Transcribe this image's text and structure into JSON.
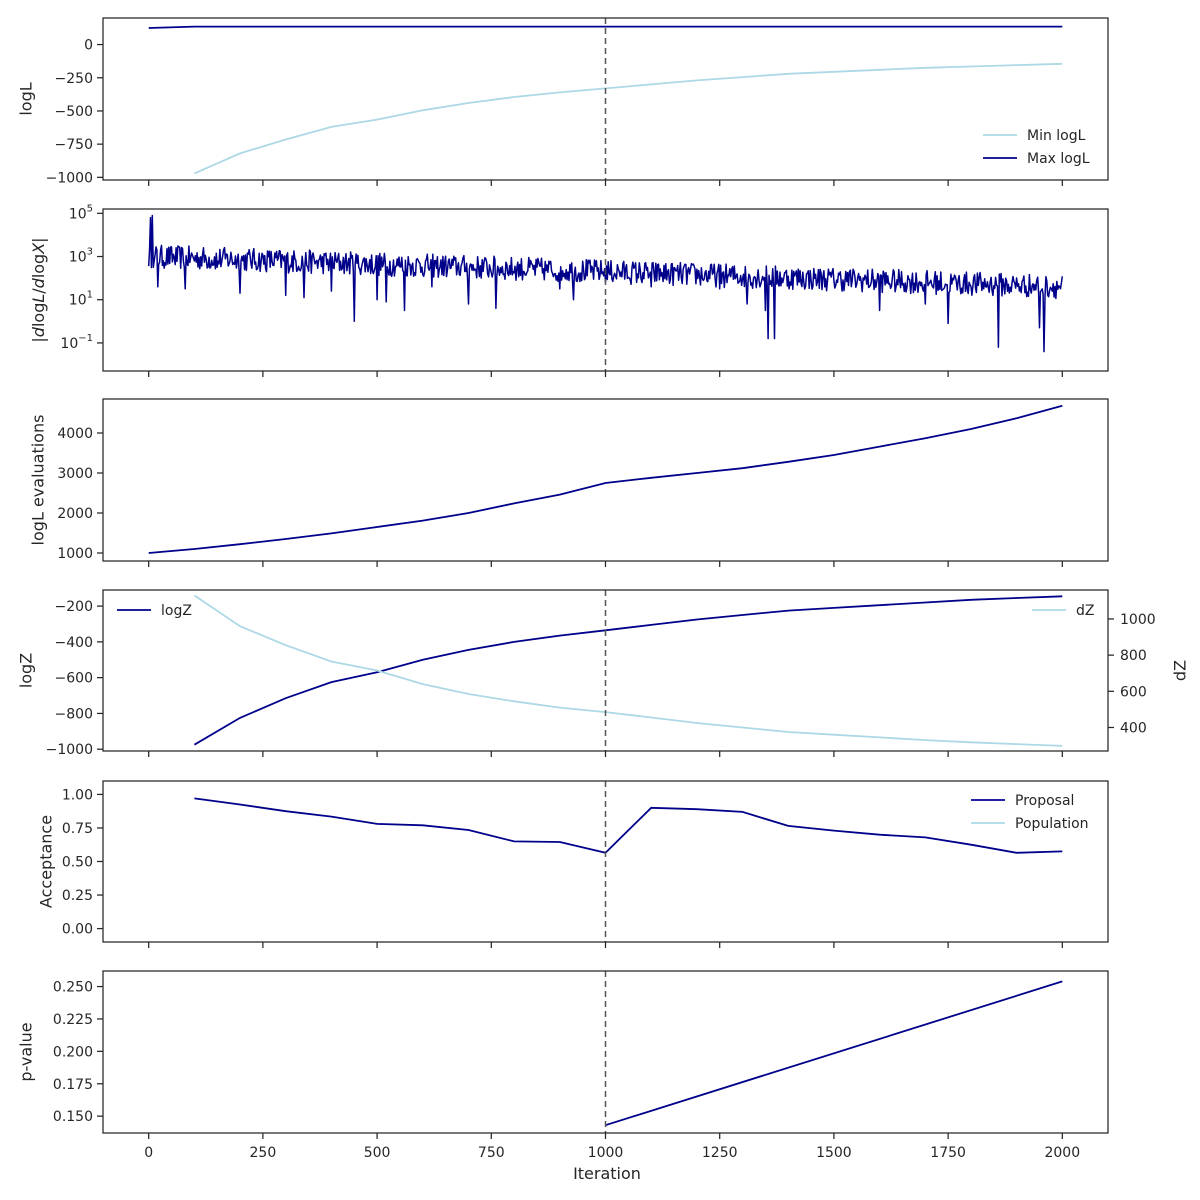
{
  "colors": {
    "dark": "#00008b",
    "light": "#add8e6",
    "vline": "#555555",
    "axis": "#262626"
  },
  "x_axis": {
    "label": "Iteration",
    "range": [
      -100,
      2100
    ],
    "ticks": [
      0,
      250,
      500,
      750,
      1000,
      1250,
      1500,
      1750,
      2000
    ],
    "tick_labels": [
      "0",
      "250",
      "500",
      "750",
      "1000",
      "1250",
      "1500",
      "1750",
      "2000"
    ]
  },
  "vline_x": 1000,
  "chart_data": [
    {
      "type": "line",
      "ylabel": "logL",
      "ylim": [
        -1020,
        200
      ],
      "yticks": [
        0,
        -250,
        -500,
        -750,
        -1000
      ],
      "ytick_labels": [
        "0",
        "−250",
        "−500",
        "−750",
        "−1000"
      ],
      "legend": {
        "placement": "lower-right",
        "entries": [
          "Min logL",
          "Max logL"
        ]
      },
      "series": [
        {
          "name": "Min logL",
          "color": "light",
          "x": [
            100,
            200,
            300,
            400,
            500,
            600,
            700,
            800,
            900,
            1000,
            1100,
            1200,
            1300,
            1400,
            1500,
            1600,
            1700,
            1800,
            1900,
            2000
          ],
          "y": [
            -970,
            -820,
            -715,
            -620,
            -565,
            -495,
            -440,
            -395,
            -360,
            -330,
            -300,
            -270,
            -245,
            -220,
            -205,
            -190,
            -175,
            -165,
            -155,
            -145
          ]
        },
        {
          "name": "Max logL",
          "color": "dark",
          "x": [
            0,
            100,
            2000
          ],
          "y": [
            125,
            135,
            135
          ]
        }
      ]
    },
    {
      "type": "line",
      "ylabel": "|dlogL/dlogX|",
      "yscale": "log",
      "ylim_log10": [
        -2.3,
        5.2
      ],
      "yticks_log10": [
        5,
        3,
        1,
        -1
      ],
      "ytick_labels": [
        "10^5",
        "10^3",
        "10^1",
        "10^-1"
      ],
      "series": [
        {
          "name": "",
          "color": "dark",
          "noise": {
            "start": 0,
            "end": 2000,
            "step": 2,
            "log10_start": 3.0,
            "log10_end": 1.6,
            "jitter": 0.55
          },
          "dips": [
            [
              4,
              4.8
            ],
            [
              8,
              4.9
            ],
            [
              12,
              2.8
            ],
            [
              20,
              1.6
            ],
            [
              80,
              1.5
            ],
            [
              150,
              2.5
            ],
            [
              200,
              1.3
            ],
            [
              300,
              1.2
            ],
            [
              340,
              1.1
            ],
            [
              400,
              1.4
            ],
            [
              450,
              0.0
            ],
            [
              500,
              1.0
            ],
            [
              520,
              0.9
            ],
            [
              560,
              0.5
            ],
            [
              620,
              1.6
            ],
            [
              700,
              0.8
            ],
            [
              760,
              0.6
            ],
            [
              900,
              1.5
            ],
            [
              930,
              1.0
            ],
            [
              1100,
              1.6
            ],
            [
              1250,
              1.5
            ],
            [
              1310,
              0.8
            ],
            [
              1350,
              0.5
            ],
            [
              1355,
              -0.8
            ],
            [
              1370,
              -0.8
            ],
            [
              1600,
              0.5
            ],
            [
              1700,
              0.8
            ],
            [
              1750,
              -0.1
            ],
            [
              1860,
              -1.2
            ],
            [
              1950,
              -0.3
            ],
            [
              1960,
              -1.4
            ]
          ]
        }
      ]
    },
    {
      "type": "line",
      "ylabel": "logL evaluations",
      "ylim": [
        800,
        4850
      ],
      "yticks": [
        1000,
        2000,
        3000,
        4000
      ],
      "ytick_labels": [
        "1000",
        "2000",
        "3000",
        "4000"
      ],
      "series": [
        {
          "name": "",
          "color": "dark",
          "x": [
            0,
            100,
            200,
            300,
            400,
            500,
            600,
            700,
            800,
            900,
            1000,
            1100,
            1200,
            1300,
            1400,
            1500,
            1600,
            1700,
            1800,
            1900,
            2000
          ],
          "y": [
            1000,
            1100,
            1220,
            1350,
            1490,
            1650,
            1810,
            2000,
            2240,
            2460,
            2750,
            2880,
            3000,
            3120,
            3280,
            3450,
            3660,
            3870,
            4100,
            4370,
            4680
          ]
        }
      ]
    },
    {
      "type": "line",
      "ylabel": "logZ",
      "ylim": [
        -1010,
        -110
      ],
      "yticks": [
        -200,
        -400,
        -600,
        -800,
        -1000
      ],
      "ytick_labels": [
        "−200",
        "−400",
        "−600",
        "−800",
        "−1000"
      ],
      "legend": {
        "placement": "upper-left",
        "entries": [
          "logZ"
        ]
      },
      "series": [
        {
          "name": "logZ",
          "color": "dark",
          "x": [
            100,
            200,
            300,
            400,
            500,
            600,
            700,
            800,
            900,
            1000,
            1100,
            1200,
            1300,
            1400,
            1500,
            1600,
            1700,
            1800,
            1900,
            2000
          ],
          "y": [
            -975,
            -825,
            -715,
            -625,
            -570,
            -500,
            -445,
            -400,
            -365,
            -335,
            -305,
            -275,
            -250,
            -225,
            -210,
            -195,
            -180,
            -165,
            -155,
            -145
          ]
        }
      ],
      "secondary_axis": {
        "ylabel": "dZ",
        "ylim": [
          270,
          1160
        ],
        "yticks": [
          400,
          600,
          800,
          1000
        ],
        "ytick_labels": [
          "400",
          "600",
          "800",
          "1000"
        ],
        "legend": {
          "placement": "upper-right",
          "entries": [
            "dZ"
          ]
        },
        "series": [
          {
            "name": "dZ",
            "color": "light",
            "x": [
              100,
              200,
              300,
              400,
              500,
              600,
              700,
              800,
              900,
              1000,
              1100,
              1200,
              1300,
              1400,
              1500,
              1600,
              1700,
              1800,
              1900,
              2000
            ],
            "y": [
              1130,
              960,
              855,
              765,
              715,
              640,
              585,
              545,
              510,
              485,
              455,
              425,
              400,
              375,
              360,
              345,
              330,
              318,
              308,
              298
            ]
          }
        ]
      }
    },
    {
      "type": "line",
      "ylabel": "Acceptance",
      "ylim": [
        -0.1,
        1.1
      ],
      "yticks": [
        1.0,
        0.75,
        0.5,
        0.25,
        0.0
      ],
      "ytick_labels": [
        "1.00",
        "0.75",
        "0.50",
        "0.25",
        "0.00"
      ],
      "legend": {
        "placement": "upper-right",
        "entries": [
          "Proposal",
          "Population"
        ]
      },
      "series": [
        {
          "name": "Proposal",
          "color": "dark",
          "x": [
            100,
            200,
            300,
            400,
            500,
            600,
            700,
            800,
            900,
            1000,
            1100,
            1200,
            1300,
            1400,
            1500,
            1600,
            1700,
            1800,
            1900,
            2000
          ],
          "y": [
            0.97,
            0.925,
            0.875,
            0.835,
            0.78,
            0.77,
            0.735,
            0.65,
            0.645,
            0.565,
            0.9,
            0.89,
            0.87,
            0.765,
            0.73,
            0.7,
            0.68,
            0.625,
            0.565,
            0.575
          ]
        },
        {
          "name": "Population",
          "color": "light",
          "x": [],
          "y": []
        }
      ]
    },
    {
      "type": "line",
      "ylabel": "p-value",
      "ylim": [
        0.137,
        0.262
      ],
      "yticks": [
        0.25,
        0.225,
        0.2,
        0.175,
        0.15
      ],
      "ytick_labels": [
        "0.250",
        "0.225",
        "0.200",
        "0.175",
        "0.150"
      ],
      "series": [
        {
          "name": "",
          "color": "dark",
          "x": [
            1000,
            2000
          ],
          "y": [
            0.143,
            0.254
          ]
        }
      ]
    }
  ]
}
